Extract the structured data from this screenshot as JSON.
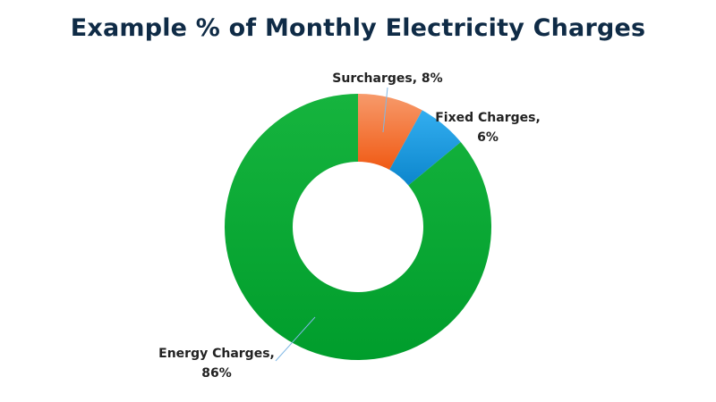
{
  "chart_data": {
    "type": "pie",
    "style": "donut",
    "title": "Example % of Monthly Electricity Charges",
    "slices": [
      {
        "label": "Surcharges",
        "value": 8,
        "value_text": "8%",
        "color": "#f4682c"
      },
      {
        "label": "Fixed Charges",
        "value": 6,
        "value_text": "6%",
        "color": "#1f9be0"
      },
      {
        "label": "Energy Charges",
        "value": 86,
        "value_text": "86%",
        "color": "#0aaa3a"
      }
    ],
    "legend": "none",
    "data_labels": "outside with leader lines"
  }
}
